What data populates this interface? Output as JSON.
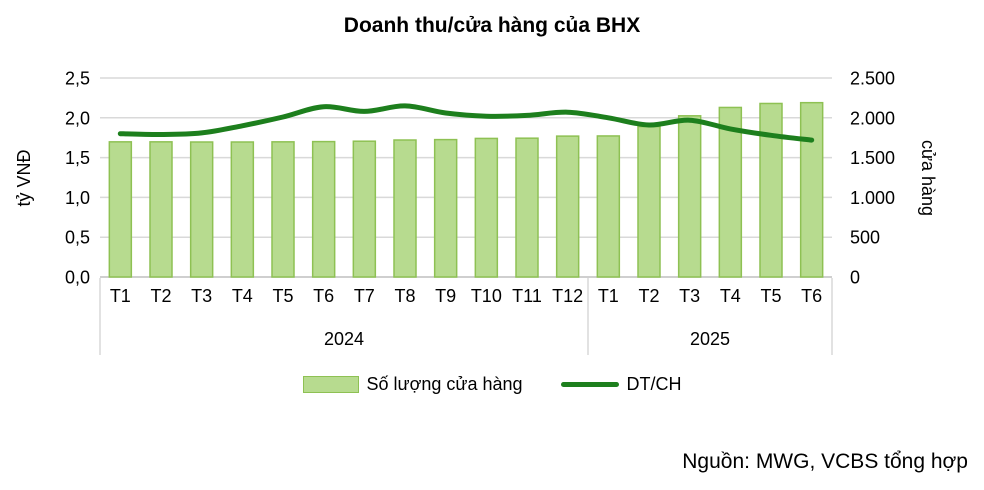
{
  "source": "Nguồn: MWG, VCBS tổng hợp",
  "chart_data": {
    "type": "bar+line",
    "title": "Doanh thu/cửa hàng của BHX",
    "categories": [
      "T1",
      "T2",
      "T3",
      "T4",
      "T5",
      "T6",
      "T7",
      "T8",
      "T9",
      "T10",
      "T11",
      "T12",
      "T1",
      "T2",
      "T3",
      "T4",
      "T5",
      "T6"
    ],
    "year_groups": [
      {
        "label": "2024",
        "count": 12
      },
      {
        "label": "2025",
        "count": 6
      }
    ],
    "series": [
      {
        "name": "Số lượng cửa hàng",
        "type": "bar",
        "axis": "right",
        "values": [
          1698,
          1698,
          1696,
          1696,
          1698,
          1701,
          1706,
          1721,
          1726,
          1741,
          1744,
          1770,
          1772,
          1890,
          2025,
          2130,
          2180,
          2190
        ]
      },
      {
        "name": "DT/CH",
        "type": "line",
        "axis": "left",
        "values": [
          1.8,
          1.79,
          1.81,
          1.9,
          2.01,
          2.14,
          2.08,
          2.15,
          2.06,
          2.02,
          2.03,
          2.07,
          2.0,
          1.91,
          1.97,
          1.86,
          1.78,
          1.72
        ]
      }
    ],
    "left_axis": {
      "title": "tỷ VNĐ",
      "min": 0,
      "max": 2.5,
      "ticks": [
        "0,0",
        "0,5",
        "1,0",
        "1,5",
        "2,0",
        "2,5"
      ]
    },
    "right_axis": {
      "title": "cửa hàng",
      "min": 0,
      "max": 2500,
      "ticks": [
        "0",
        "500",
        "1.000",
        "1.500",
        "2.000",
        "2.500"
      ]
    },
    "grid": true,
    "legend_position": "bottom",
    "colors": {
      "bar_fill": "#b7db8f",
      "bar_border": "#8ec153",
      "line": "#1d7f1d",
      "grid_line": "#d9d9d9",
      "axis_line": "#bfbfbf",
      "text": "#000000"
    }
  }
}
